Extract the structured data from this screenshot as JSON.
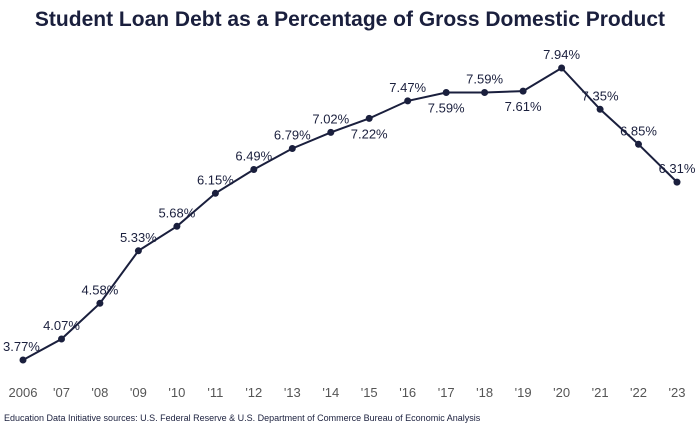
{
  "chart_data": {
    "type": "line",
    "title": "Student Loan Debt as a Percentage of Gross Domestic Product",
    "source": "Education Data Initiative sources: U.S. Federal Reserve & U.S. Department of Commerce Bureau of Economic Analysis",
    "x": [
      "2006",
      "'07",
      "'08",
      "'09",
      "'10",
      "'11",
      "'12",
      "'13",
      "'14",
      "'15",
      "'16",
      "'17",
      "'18",
      "'19",
      "'20",
      "'21",
      "'22",
      "'23"
    ],
    "series": [
      {
        "values": [
          3.77,
          4.07,
          4.58,
          5.33,
          5.68,
          6.15,
          6.49,
          6.79,
          7.02,
          7.22,
          7.47,
          7.59,
          7.59,
          7.61,
          7.94,
          7.35,
          6.85,
          6.31
        ],
        "labels": [
          "3.77%",
          "4.07%",
          "4.58%",
          "5.33%",
          "5.68%",
          "6.15%",
          "6.49%",
          "6.79%",
          "7.02%",
          "7.22%",
          "7.47%",
          "7.59%",
          "7.59%",
          "7.61%",
          "7.94%",
          "7.35%",
          "6.85%",
          "6.31%"
        ]
      }
    ],
    "ylim": [
      3.77,
      7.94
    ],
    "grid": false,
    "legend": "none",
    "colors": {
      "line": "#1a1f3d",
      "text": "#1a1f3d",
      "tick": "#555555"
    }
  }
}
